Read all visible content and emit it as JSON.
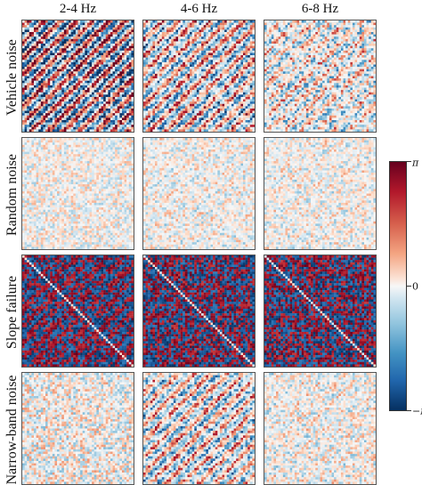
{
  "chart_data": {
    "type": "heatmap",
    "columns": [
      "2-4 Hz",
      "4-6 Hz",
      "6-8 Hz"
    ],
    "rows": [
      "Vehicle noise",
      "Random noise",
      "Slope failure",
      "Narrow-band noise"
    ],
    "colorbar": {
      "colormap": "RdBu_r",
      "min": -3.14159,
      "max": 3.14159,
      "tick_labels": [
        "π",
        "0",
        "−π"
      ],
      "tick_values": [
        3.14159,
        0,
        -3.14159
      ]
    },
    "panels": [
      {
        "row": 0,
        "col": 0,
        "intensity": 0.85,
        "stripes": 0.9
      },
      {
        "row": 0,
        "col": 1,
        "intensity": 0.6,
        "stripes": 0.6
      },
      {
        "row": 0,
        "col": 2,
        "intensity": 0.55,
        "stripes": 0.3
      },
      {
        "row": 1,
        "col": 0,
        "intensity": 0.35,
        "stripes": 0.0
      },
      {
        "row": 1,
        "col": 1,
        "intensity": 0.35,
        "stripes": 0.1
      },
      {
        "row": 1,
        "col": 2,
        "intensity": 0.35,
        "stripes": 0.1
      },
      {
        "row": 2,
        "col": 0,
        "intensity": 1.0,
        "stripes": 0.5
      },
      {
        "row": 2,
        "col": 1,
        "intensity": 1.0,
        "stripes": 0.2
      },
      {
        "row": 2,
        "col": 2,
        "intensity": 1.0,
        "stripes": 0.1
      },
      {
        "row": 3,
        "col": 0,
        "intensity": 0.45,
        "stripes": 0.0
      },
      {
        "row": 3,
        "col": 1,
        "intensity": 0.55,
        "stripes": 0.5
      },
      {
        "row": 3,
        "col": 2,
        "intensity": 0.4,
        "stripes": 0.1
      }
    ]
  }
}
